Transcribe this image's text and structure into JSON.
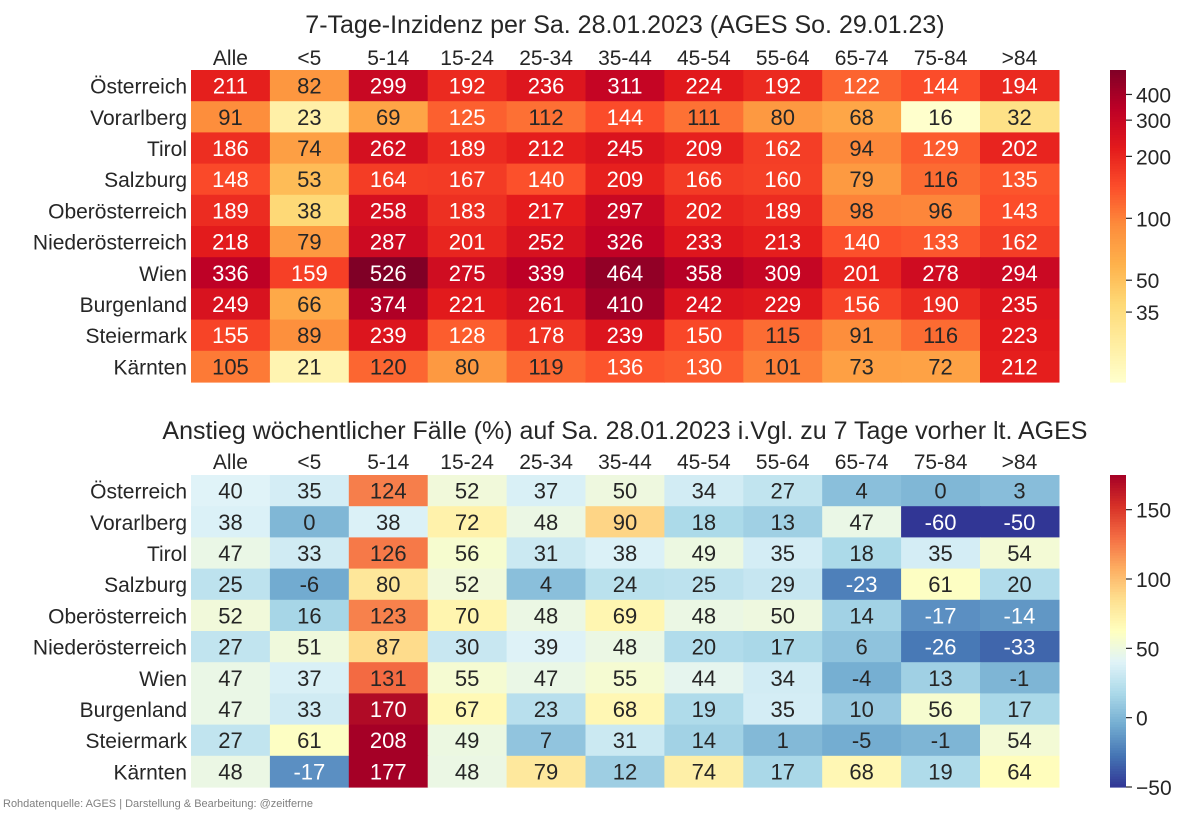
{
  "chart_data": [
    {
      "type": "heatmap",
      "title": "7-Tage-Inzidenz per Sa. 28.01.2023  (AGES So. 29.01.23)",
      "columns": [
        "Alle",
        "<5",
        "5-14",
        "15-24",
        "25-34",
        "35-44",
        "45-54",
        "55-64",
        "65-74",
        "75-84",
        ">84"
      ],
      "rows": [
        "Österreich",
        "Vorarlberg",
        "Tirol",
        "Salzburg",
        "Oberösterreich",
        "Niederösterreich",
        "Wien",
        "Burgenland",
        "Steiermark",
        "Kärnten"
      ],
      "values": [
        [
          211,
          82,
          299,
          192,
          236,
          311,
          224,
          192,
          122,
          144,
          194
        ],
        [
          91,
          23,
          69,
          125,
          112,
          144,
          111,
          80,
          68,
          16,
          32
        ],
        [
          186,
          74,
          262,
          189,
          212,
          245,
          209,
          162,
          94,
          129,
          202
        ],
        [
          148,
          53,
          164,
          167,
          140,
          209,
          166,
          160,
          79,
          116,
          135
        ],
        [
          189,
          38,
          258,
          183,
          217,
          297,
          202,
          189,
          98,
          96,
          143
        ],
        [
          218,
          79,
          287,
          201,
          252,
          326,
          233,
          213,
          140,
          133,
          162
        ],
        [
          336,
          159,
          526,
          275,
          339,
          464,
          358,
          309,
          201,
          278,
          294
        ],
        [
          249,
          66,
          374,
          221,
          261,
          410,
          242,
          229,
          156,
          190,
          235
        ],
        [
          155,
          89,
          239,
          128,
          178,
          239,
          150,
          115,
          91,
          116,
          223
        ],
        [
          105,
          21,
          120,
          80,
          119,
          136,
          130,
          101,
          73,
          72,
          212
        ]
      ],
      "colormap": "YlOrRd",
      "scale": "log",
      "colorbar": {
        "range": [
          16,
          526
        ],
        "ticks": [
          400,
          300,
          200,
          100,
          50,
          35
        ]
      }
    },
    {
      "type": "heatmap",
      "title": "Anstieg wöchentlicher Fälle (%) auf Sa. 28.01.2023 i.Vgl. zu 7 Tage vorher lt. AGES",
      "columns": [
        "Alle",
        "<5",
        "5-14",
        "15-24",
        "25-34",
        "35-44",
        "45-54",
        "55-64",
        "65-74",
        "75-84",
        ">84"
      ],
      "rows": [
        "Österreich",
        "Vorarlberg",
        "Tirol",
        "Salzburg",
        "Oberösterreich",
        "Niederösterreich",
        "Wien",
        "Burgenland",
        "Steiermark",
        "Kärnten"
      ],
      "values": [
        [
          40,
          35,
          124,
          52,
          37,
          50,
          34,
          27,
          4,
          0,
          3
        ],
        [
          38,
          0,
          38,
          72,
          48,
          90,
          18,
          13,
          47,
          -60,
          -50
        ],
        [
          47,
          33,
          126,
          56,
          31,
          38,
          49,
          35,
          18,
          35,
          54
        ],
        [
          25,
          -6,
          80,
          52,
          4,
          24,
          25,
          29,
          -23,
          61,
          20
        ],
        [
          52,
          16,
          123,
          70,
          48,
          69,
          48,
          50,
          14,
          -17,
          -14
        ],
        [
          27,
          51,
          87,
          30,
          39,
          48,
          20,
          17,
          6,
          -26,
          -33
        ],
        [
          47,
          37,
          131,
          55,
          47,
          55,
          44,
          34,
          -4,
          13,
          -1
        ],
        [
          47,
          33,
          170,
          67,
          23,
          68,
          19,
          35,
          10,
          56,
          17
        ],
        [
          27,
          61,
          208,
          49,
          7,
          31,
          14,
          1,
          -5,
          -1,
          54
        ],
        [
          48,
          -17,
          177,
          48,
          79,
          12,
          74,
          17,
          68,
          19,
          64
        ]
      ],
      "colormap": "RdYlBu_r",
      "scale": "linear",
      "colorbar": {
        "range": [
          -50,
          175
        ],
        "ticks": [
          150,
          100,
          50,
          0,
          -50
        ]
      }
    }
  ],
  "footer": "Rohdatenquelle: AGES | Darstellung & Bearbeitung: @zeitferne"
}
